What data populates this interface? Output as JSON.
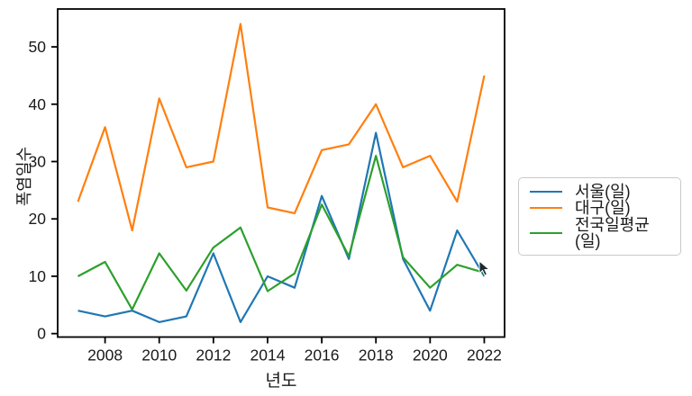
{
  "figure": {
    "background": "#ffffff",
    "frame_color": "#000000",
    "text_color": "#1a1a1a",
    "legend_border_color": "#c9c9c9"
  },
  "chart_data": {
    "type": "line",
    "title": "",
    "xlabel": "년도",
    "ylabel": "폭염일수",
    "x": [
      2007,
      2008,
      2009,
      2010,
      2011,
      2012,
      2013,
      2014,
      2015,
      2016,
      2017,
      2018,
      2019,
      2020,
      2021,
      2022
    ],
    "series": [
      {
        "name": "서울(일)",
        "color": "#1f77b4",
        "values": [
          4,
          3,
          4,
          2,
          3,
          14,
          2,
          10,
          8,
          24,
          13,
          35,
          13,
          4,
          18,
          10
        ]
      },
      {
        "name": "대구(일)",
        "color": "#ff7f0e",
        "values": [
          23,
          36,
          18,
          41,
          29,
          30,
          54,
          22,
          21,
          32,
          33,
          40,
          29,
          31,
          23,
          45
        ]
      },
      {
        "name": "전국일평균(일)",
        "color": "#2ca02c",
        "values": [
          10,
          12.5,
          4.2,
          14,
          7.5,
          15,
          18.5,
          7.4,
          10.5,
          22.5,
          13.5,
          31,
          13.3,
          8,
          12,
          10.6
        ]
      }
    ],
    "xticks": [
      2008,
      2010,
      2012,
      2014,
      2016,
      2018,
      2020,
      2022
    ],
    "yticks": [
      0,
      10,
      20,
      30,
      40,
      50
    ],
    "xlim": [
      2006.25,
      2022.75
    ],
    "ylim": [
      -0.6,
      56.6
    ],
    "grid": false,
    "legend": {
      "position": "right-outside",
      "entries": [
        "서울(일)",
        "대구(일)",
        "전국일평균(일)"
      ]
    }
  }
}
